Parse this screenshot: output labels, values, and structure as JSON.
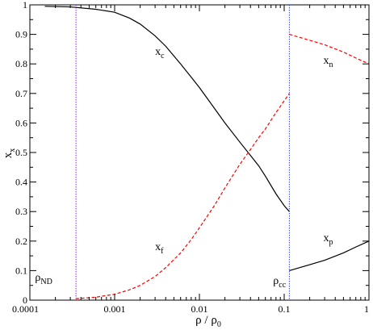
{
  "chart_data": {
    "type": "line",
    "xscale": "log",
    "xlim": [
      0.0001,
      1
    ],
    "ylim": [
      0,
      1
    ],
    "xlabel": {
      "base": "ρ / ρ",
      "sub": "0"
    },
    "ylabel": {
      "base": "x",
      "sub": "x"
    },
    "x_ticks": [
      {
        "value": 0.0001,
        "label": "0.0001"
      },
      {
        "value": 0.001,
        "label": "0.001"
      },
      {
        "value": 0.01,
        "label": "0.01"
      },
      {
        "value": 0.1,
        "label": "0.1"
      },
      {
        "value": 1,
        "label": "1"
      }
    ],
    "y_ticks": [
      {
        "value": 0,
        "label": "0"
      },
      {
        "value": 0.1,
        "label": "0.1"
      },
      {
        "value": 0.2,
        "label": "0.2"
      },
      {
        "value": 0.3,
        "label": "0.3"
      },
      {
        "value": 0.4,
        "label": "0.4"
      },
      {
        "value": 0.5,
        "label": "0.5"
      },
      {
        "value": 0.6,
        "label": "0.6"
      },
      {
        "value": 0.7,
        "label": "0.7"
      },
      {
        "value": 0.8,
        "label": "0.8"
      },
      {
        "value": 0.9,
        "label": "0.9"
      },
      {
        "value": 1,
        "label": "1"
      }
    ],
    "series": [
      {
        "id": "x_c",
        "color": "#000000",
        "dash": "solid",
        "x": [
          0.00015,
          0.0003,
          0.0006,
          0.001,
          0.0015,
          0.002,
          0.003,
          0.004,
          0.006,
          0.008,
          0.01,
          0.015,
          0.02,
          0.03,
          0.04,
          0.05,
          0.06,
          0.08,
          0.1,
          0.115
        ],
        "y": [
          0.995,
          0.993,
          0.985,
          0.975,
          0.955,
          0.935,
          0.895,
          0.86,
          0.8,
          0.755,
          0.72,
          0.65,
          0.6,
          0.535,
          0.49,
          0.455,
          0.42,
          0.36,
          0.32,
          0.3
        ]
      },
      {
        "id": "x_f",
        "color": "#ff0000",
        "dash": "dashed",
        "x": [
          0.00035,
          0.0006,
          0.001,
          0.0015,
          0.002,
          0.003,
          0.004,
          0.006,
          0.008,
          0.01,
          0.015,
          0.02,
          0.03,
          0.04,
          0.05,
          0.06,
          0.08,
          0.1,
          0.115
        ],
        "y": [
          0.005,
          0.01,
          0.02,
          0.035,
          0.05,
          0.08,
          0.11,
          0.16,
          0.205,
          0.245,
          0.32,
          0.38,
          0.46,
          0.51,
          0.55,
          0.58,
          0.635,
          0.675,
          0.7
        ]
      },
      {
        "id": "x_n",
        "color": "#ff0000",
        "dash": "dashed",
        "x": [
          0.115,
          0.2,
          0.3,
          0.5,
          0.7,
          1
        ],
        "y": [
          0.9,
          0.88,
          0.865,
          0.84,
          0.82,
          0.8
        ]
      },
      {
        "id": "x_p",
        "color": "#000000",
        "dash": "solid",
        "x": [
          0.115,
          0.2,
          0.3,
          0.5,
          0.7,
          1
        ],
        "y": [
          0.1,
          0.12,
          0.135,
          0.16,
          0.18,
          0.2
        ]
      }
    ],
    "vlines": [
      {
        "id": "rho_nd",
        "x": 0.00035,
        "color": "#8833dd"
      },
      {
        "id": "rho_cc",
        "x": 0.115,
        "color": "#3344ee"
      }
    ],
    "annotations": [
      {
        "id": "label-xc",
        "base": "x",
        "sub": "c",
        "x": 0.003,
        "y": 0.83
      },
      {
        "id": "label-xn",
        "base": "x",
        "sub": "n",
        "x": 0.29,
        "y": 0.8
      },
      {
        "id": "label-xf",
        "base": "x",
        "sub": "f",
        "x": 0.003,
        "y": 0.17
      },
      {
        "id": "label-xp",
        "base": "x",
        "sub": "p",
        "x": 0.29,
        "y": 0.2
      },
      {
        "id": "label-rho-nd",
        "base": "ρ",
        "sub": "ND",
        "x": 0.000115,
        "y": 0.065
      },
      {
        "id": "label-rho-cc",
        "base": "ρ",
        "sub": "cc",
        "x": 0.074,
        "y": 0.055
      }
    ]
  }
}
